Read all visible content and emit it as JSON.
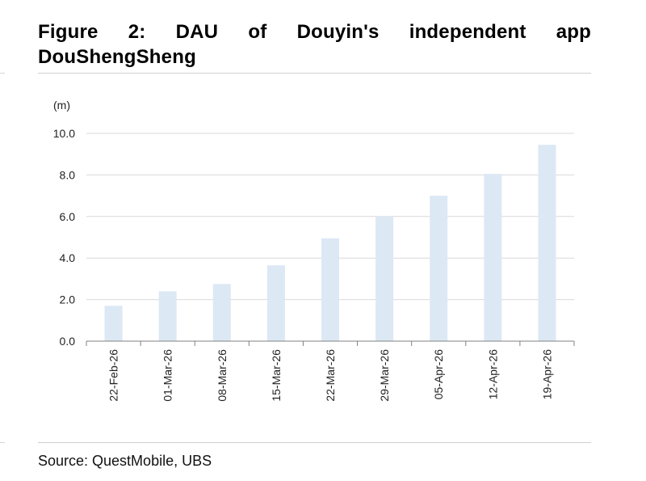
{
  "figure": {
    "title": "Figure 2: DAU of Douyin's independent app DouShengSheng",
    "source": "Source: QuestMobile, UBS"
  },
  "chart_data": {
    "type": "bar",
    "title": "",
    "xlabel": "",
    "ylabel": "(m)",
    "categories": [
      "22-Feb-26",
      "01-Mar-26",
      "08-Mar-26",
      "15-Mar-26",
      "22-Mar-26",
      "29-Mar-26",
      "05-Apr-26",
      "12-Apr-26",
      "19-Apr-26"
    ],
    "values": [
      1.7,
      2.4,
      2.75,
      3.65,
      4.95,
      6.0,
      7.0,
      8.05,
      9.45
    ],
    "ylim": [
      0,
      10
    ],
    "yticks": [
      0,
      2,
      4,
      6,
      8,
      10
    ],
    "ytick_labels": [
      "0.0",
      "2.0",
      "4.0",
      "6.0",
      "8.0",
      "10.0"
    ],
    "grid": true,
    "bar_color": "#dde8f5",
    "grid_color": "#d9d9d9",
    "axis_color": "#808080"
  }
}
